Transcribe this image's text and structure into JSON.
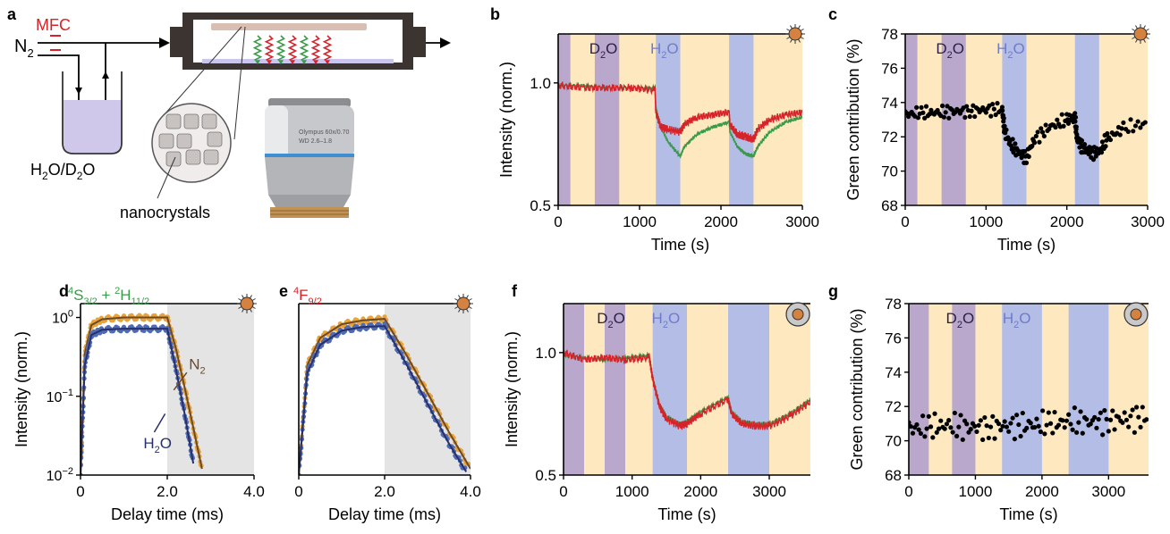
{
  "colors": {
    "d2o_band": "#b9a8cc",
    "h2o_band": "#b4bde6",
    "n2_band": "#fde8c0",
    "green_trace": "#3a9a4a",
    "red_trace": "#d6232a",
    "orange_fit": "#e8a33a",
    "blue_fit": "#4f6bb4",
    "brown_line": "#6b4a2a",
    "navy_line": "#27306a",
    "nanocrystal": "#d5813f"
  },
  "panel_labels": {
    "a": "a",
    "b": "b",
    "c": "c",
    "d": "d",
    "e": "e",
    "f": "f",
    "g": "g"
  },
  "panel_a": {
    "mfc": "MFC",
    "n2": "N2",
    "n2_main": "N",
    "n2_sub": "2",
    "solvent": "H2O/D2O",
    "solvent_parts": [
      "H",
      "2",
      "O/D",
      "2",
      "O"
    ],
    "nanocrystals": "nanocrystals",
    "objective_text1": "Olympus 60x/0.70",
    "objective_text2": "WD 2.6–1.8"
  },
  "chart_data": [
    {
      "id": "b",
      "type": "line",
      "xlabel": "Time (s)",
      "ylabel": "Intensity (norm.)",
      "xlim": [
        0,
        3000
      ],
      "ylim": [
        0.5,
        1.2
      ],
      "xticks": [
        0,
        1000,
        2000,
        3000
      ],
      "yticks": [
        0.5,
        1.0
      ],
      "ytick_labels": [
        "0.5",
        "1.0"
      ],
      "bands": [
        {
          "from": 0,
          "to": 150,
          "gas": "D2O"
        },
        {
          "from": 450,
          "to": 750,
          "gas": "D2O"
        },
        {
          "from": 1200,
          "to": 1500,
          "gas": "H2O"
        },
        {
          "from": 2100,
          "to": 2400,
          "gas": "H2O"
        }
      ],
      "annotations": [
        {
          "text": "D2O",
          "at": 580
        },
        {
          "text": "H2O",
          "at": 1330
        }
      ],
      "series": [
        {
          "name": "green",
          "color": "#3a9a4a",
          "x": [
            0,
            300,
            600,
            900,
            1190,
            1200,
            1260,
            1350,
            1500,
            1550,
            1700,
            1900,
            2100,
            2110,
            2200,
            2300,
            2400,
            2450,
            2600,
            2800,
            3000
          ],
          "y": [
            0.99,
            0.99,
            0.98,
            0.98,
            0.98,
            0.9,
            0.82,
            0.76,
            0.7,
            0.74,
            0.79,
            0.82,
            0.84,
            0.8,
            0.74,
            0.71,
            0.7,
            0.74,
            0.8,
            0.84,
            0.86
          ]
        },
        {
          "name": "red",
          "color": "#d6232a",
          "x": [
            0,
            300,
            600,
            900,
            1190,
            1200,
            1260,
            1350,
            1500,
            1550,
            1700,
            1900,
            2100,
            2110,
            2200,
            2300,
            2400,
            2450,
            2600,
            2800,
            3000
          ],
          "y": [
            0.99,
            0.98,
            0.98,
            0.98,
            0.97,
            0.88,
            0.82,
            0.81,
            0.8,
            0.83,
            0.86,
            0.87,
            0.88,
            0.83,
            0.79,
            0.78,
            0.77,
            0.81,
            0.85,
            0.87,
            0.88
          ]
        }
      ]
    },
    {
      "id": "c",
      "type": "scatter",
      "xlabel": "Time (s)",
      "ylabel": "Green contribution (%)",
      "xlim": [
        0,
        3000
      ],
      "ylim": [
        68,
        78
      ],
      "xticks": [
        0,
        1000,
        2000,
        3000
      ],
      "yticks": [
        68,
        70,
        72,
        74,
        76,
        78
      ],
      "bands": [
        {
          "from": 0,
          "to": 150,
          "gas": "D2O"
        },
        {
          "from": 450,
          "to": 750,
          "gas": "D2O"
        },
        {
          "from": 1200,
          "to": 1500,
          "gas": "H2O"
        },
        {
          "from": 2100,
          "to": 2400,
          "gas": "H2O"
        }
      ],
      "annotations": [
        {
          "text": "D2O",
          "at": 580
        },
        {
          "text": "H2O",
          "at": 1330
        }
      ],
      "series": [
        {
          "name": "points",
          "color": "#000000",
          "x": [
            0,
            200,
            400,
            600,
            800,
            1000,
            1200,
            1230,
            1300,
            1400,
            1500,
            1600,
            1800,
            2000,
            2100,
            2130,
            2200,
            2300,
            2400,
            2500,
            2700,
            3000
          ],
          "y": [
            73.3,
            73.4,
            73.4,
            73.5,
            73.5,
            73.6,
            73.6,
            72.3,
            71.6,
            71.1,
            70.8,
            71.9,
            72.6,
            73.0,
            73.1,
            71.8,
            71.4,
            71.1,
            71.1,
            71.9,
            72.5,
            72.8
          ]
        }
      ]
    },
    {
      "id": "d",
      "type": "line",
      "title_parts": [
        "4",
        "S",
        "3/2",
        " + ",
        "2",
        "H",
        "11/2"
      ],
      "xlabel": "Delay time (ms)",
      "ylabel": "Intensity (norm.)",
      "xlim": [
        0,
        4
      ],
      "ylim": [
        0.01,
        1.5
      ],
      "log_y": true,
      "xticks": [
        0,
        2,
        4
      ],
      "xtick_labels": [
        "0",
        "2.0",
        "4.0"
      ],
      "yticks": [
        0.01,
        0.1,
        1
      ],
      "ytick_labels": [
        "10",
        "10",
        "10"
      ],
      "ytick_exponents": [
        "−2",
        "−1",
        "0"
      ],
      "shade_from": 2,
      "legend": [
        "N2",
        "H2O"
      ],
      "legend_parts": [
        [
          "N",
          "2",
          ""
        ],
        [
          "H",
          "2",
          "O"
        ]
      ],
      "series": [
        {
          "name": "N2",
          "color": "#e8a33a",
          "x": [
            0,
            0.1,
            0.25,
            0.5,
            1,
            1.5,
            2,
            2.2,
            2.4,
            2.6,
            2.8
          ],
          "y": [
            0.01,
            0.35,
            0.8,
            0.95,
            1.0,
            1.0,
            1.0,
            0.4,
            0.13,
            0.04,
            0.012
          ]
        },
        {
          "name": "H2O",
          "color": "#4f6bb4",
          "x": [
            0,
            0.1,
            0.25,
            0.5,
            1,
            1.5,
            2,
            2.2,
            2.4,
            2.6
          ],
          "y": [
            0.01,
            0.25,
            0.6,
            0.7,
            0.72,
            0.72,
            0.72,
            0.22,
            0.06,
            0.014
          ]
        }
      ]
    },
    {
      "id": "e",
      "type": "line",
      "title_parts": [
        "4",
        "F",
        "9/2"
      ],
      "xlabel": "Delay time (ms)",
      "ylabel": "",
      "xlim": [
        0,
        4
      ],
      "ylim": [
        0.01,
        1.5
      ],
      "log_y": true,
      "xticks": [
        0,
        2,
        4
      ],
      "xtick_labels": [
        "0",
        "2.0",
        "4.0"
      ],
      "shade_from": 2,
      "series": [
        {
          "name": "N2",
          "color": "#e8a33a",
          "x": [
            0,
            0.2,
            0.5,
            1,
            1.5,
            2,
            2.5,
            3,
            3.5,
            4
          ],
          "y": [
            0.01,
            0.25,
            0.55,
            0.82,
            0.92,
            0.96,
            0.34,
            0.11,
            0.035,
            0.012
          ]
        },
        {
          "name": "H2O",
          "color": "#4f6bb4",
          "x": [
            0,
            0.2,
            0.5,
            1,
            1.5,
            2,
            2.5,
            3,
            3.5,
            3.9
          ],
          "y": [
            0.01,
            0.2,
            0.45,
            0.68,
            0.76,
            0.78,
            0.26,
            0.08,
            0.025,
            0.011
          ]
        }
      ]
    },
    {
      "id": "f",
      "type": "line",
      "xlabel": "Time (s)",
      "ylabel": "Intensity (norm.)",
      "xlim": [
        0,
        3600
      ],
      "ylim": [
        0.5,
        1.2
      ],
      "xticks": [
        0,
        1000,
        2000,
        3000
      ],
      "yticks": [
        0.5,
        1.0
      ],
      "ytick_labels": [
        "0.5",
        "1.0"
      ],
      "bands": [
        {
          "from": 0,
          "to": 300,
          "gas": "D2O"
        },
        {
          "from": 600,
          "to": 900,
          "gas": "D2O"
        },
        {
          "from": 1300,
          "to": 1800,
          "gas": "H2O"
        },
        {
          "from": 2400,
          "to": 3000,
          "gas": "H2O"
        }
      ],
      "annotations": [
        {
          "text": "D2O",
          "at": 720
        },
        {
          "text": "H2O",
          "at": 1520
        }
      ],
      "series": [
        {
          "name": "green",
          "color": "#3a9a4a",
          "x": [
            0,
            300,
            600,
            900,
            1250,
            1300,
            1400,
            1500,
            1700,
            1800,
            2000,
            2400,
            2450,
            2600,
            2800,
            3000,
            3300,
            3600
          ],
          "y": [
            0.99,
            0.98,
            0.97,
            0.98,
            0.99,
            0.9,
            0.79,
            0.74,
            0.71,
            0.72,
            0.76,
            0.82,
            0.76,
            0.72,
            0.71,
            0.71,
            0.75,
            0.81
          ]
        },
        {
          "name": "red",
          "color": "#d6232a",
          "x": [
            0,
            300,
            600,
            900,
            1250,
            1300,
            1400,
            1500,
            1700,
            1800,
            2000,
            2400,
            2450,
            2600,
            2800,
            3000,
            3300,
            3600
          ],
          "y": [
            1.0,
            0.97,
            0.98,
            0.97,
            0.98,
            0.89,
            0.78,
            0.73,
            0.7,
            0.71,
            0.75,
            0.81,
            0.75,
            0.71,
            0.7,
            0.7,
            0.74,
            0.8
          ]
        }
      ]
    },
    {
      "id": "g",
      "type": "scatter",
      "xlabel": "Time (s)",
      "ylabel": "Green contribution (%)",
      "xlim": [
        0,
        3600
      ],
      "ylim": [
        68,
        78
      ],
      "xticks": [
        0,
        1000,
        2000,
        3000
      ],
      "yticks": [
        68,
        70,
        72,
        74,
        76,
        78
      ],
      "bands": [
        {
          "from": 0,
          "to": 300,
          "gas": "D2O"
        },
        {
          "from": 650,
          "to": 1000,
          "gas": "D2O"
        },
        {
          "from": 1400,
          "to": 2000,
          "gas": "H2O"
        },
        {
          "from": 2400,
          "to": 3000,
          "gas": "H2O"
        }
      ],
      "annotations": [
        {
          "text": "D2O",
          "at": 800
        },
        {
          "text": "H2O",
          "at": 1650
        }
      ],
      "series": [
        {
          "name": "points",
          "color": "#000000",
          "x": [
            0,
            300,
            600,
            900,
            1200,
            1500,
            1800,
            2100,
            2400,
            2700,
            3000,
            3300,
            3600
          ],
          "y": [
            70.7,
            70.8,
            70.9,
            70.8,
            70.8,
            70.9,
            70.9,
            71.0,
            71.1,
            71.1,
            71.2,
            71.3,
            71.4
          ]
        }
      ]
    }
  ]
}
